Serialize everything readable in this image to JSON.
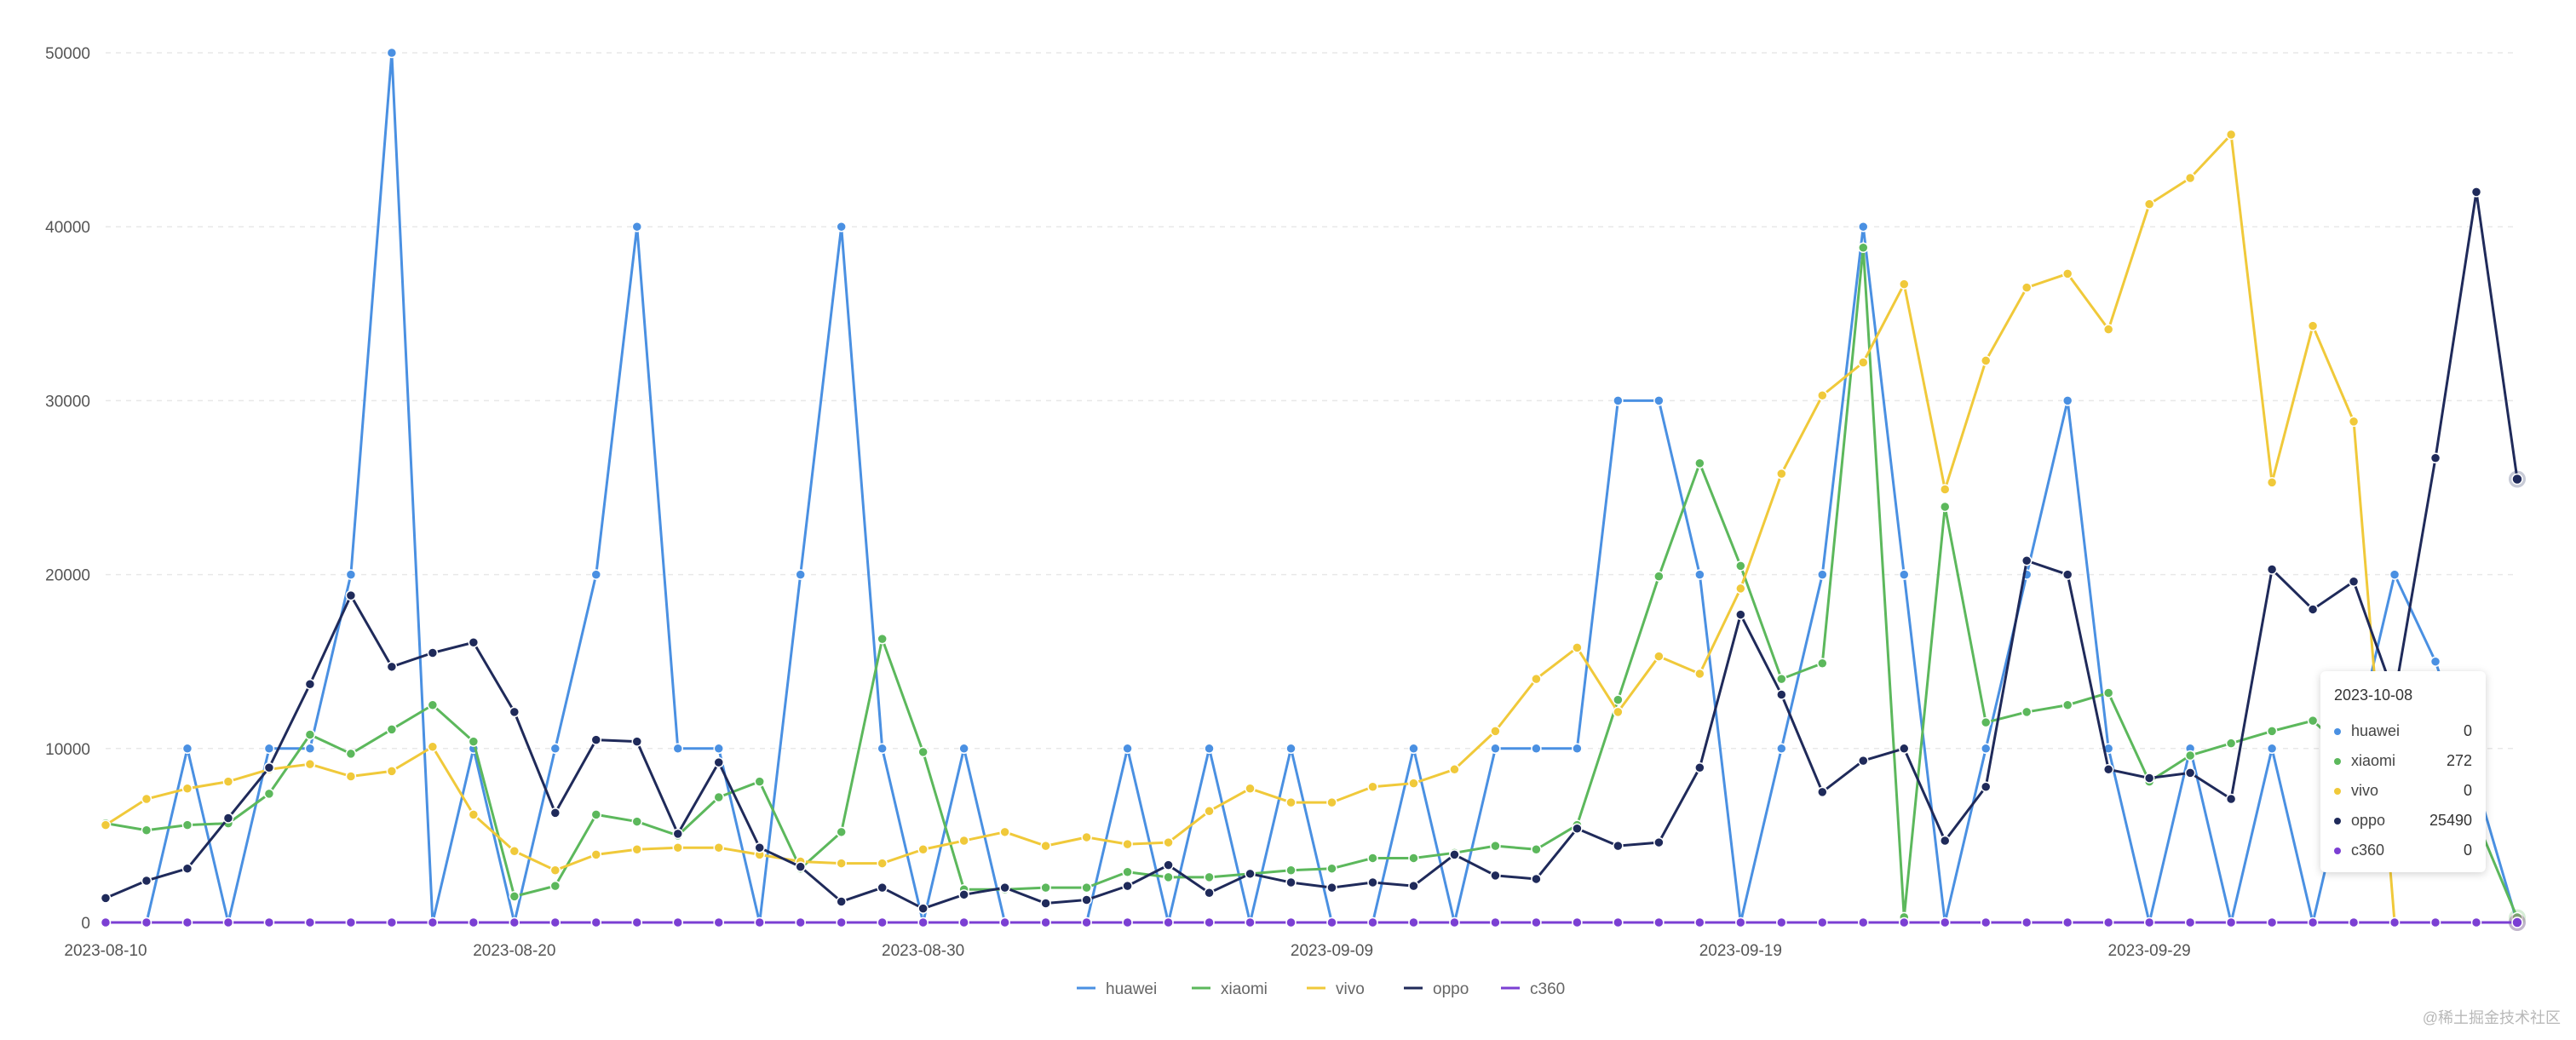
{
  "chart_data": {
    "type": "line",
    "x": [
      "2023-08-10",
      "2023-08-11",
      "2023-08-12",
      "2023-08-13",
      "2023-08-14",
      "2023-08-15",
      "2023-08-16",
      "2023-08-17",
      "2023-08-18",
      "2023-08-19",
      "2023-08-20",
      "2023-08-21",
      "2023-08-22",
      "2023-08-23",
      "2023-08-24",
      "2023-08-25",
      "2023-08-26",
      "2023-08-27",
      "2023-08-28",
      "2023-08-29",
      "2023-08-30",
      "2023-08-31",
      "2023-09-01",
      "2023-09-02",
      "2023-09-03",
      "2023-09-04",
      "2023-09-05",
      "2023-09-06",
      "2023-09-07",
      "2023-09-08",
      "2023-09-09",
      "2023-09-10",
      "2023-09-11",
      "2023-09-12",
      "2023-09-13",
      "2023-09-14",
      "2023-09-15",
      "2023-09-16",
      "2023-09-17",
      "2023-09-18",
      "2023-09-19",
      "2023-09-20",
      "2023-09-21",
      "2023-09-22",
      "2023-09-23",
      "2023-09-24",
      "2023-09-25",
      "2023-09-26",
      "2023-09-27",
      "2023-09-28",
      "2023-09-29",
      "2023-09-30",
      "2023-10-01",
      "2023-10-02",
      "2023-10-03",
      "2023-10-04",
      "2023-10-05",
      "2023-10-06",
      "2023-10-07",
      "2023-10-08"
    ],
    "x_tick_labels": [
      "2023-08-10",
      "2023-08-20",
      "2023-08-30",
      "2023-09-09",
      "2023-09-19",
      "2023-09-29"
    ],
    "ylim": [
      0,
      50000
    ],
    "y_ticks": [
      0,
      10000,
      20000,
      30000,
      40000,
      50000
    ],
    "grid": "horizontal-dashed",
    "legend": "bottom-center",
    "series": [
      {
        "name": "huawei",
        "color": "#4a90e2",
        "values": [
          0,
          0,
          10000,
          0,
          10000,
          10000,
          20000,
          50000,
          0,
          10000,
          0,
          10000,
          20000,
          40000,
          10000,
          10000,
          0,
          20000,
          40000,
          10000,
          0,
          10000,
          0,
          0,
          0,
          10000,
          0,
          10000,
          0,
          10000,
          0,
          0,
          10000,
          0,
          10000,
          10000,
          10000,
          30000,
          30000,
          20000,
          0,
          10000,
          20000,
          40000,
          20000,
          0,
          10000,
          20000,
          30000,
          10000,
          0,
          10000,
          0,
          10000,
          0,
          10000,
          20000,
          15000,
          8000,
          0
        ]
      },
      {
        "name": "xiaomi",
        "color": "#5cb85c",
        "values": [
          5700,
          5300,
          5600,
          5700,
          7400,
          10800,
          9700,
          11100,
          12500,
          10400,
          1500,
          2100,
          6200,
          5800,
          5000,
          7200,
          8100,
          3100,
          5200,
          16300,
          9800,
          1900,
          1900,
          2000,
          2000,
          2900,
          2600,
          2600,
          2800,
          3000,
          3100,
          3700,
          3700,
          4000,
          4400,
          4200,
          5600,
          12800,
          19900,
          26400,
          20500,
          14000,
          14900,
          38800,
          300,
          23900,
          11500,
          12100,
          12500,
          13200,
          8100,
          9600,
          10300,
          11000,
          11600,
          9500,
          8400,
          7500,
          5900,
          272
        ]
      },
      {
        "name": "vivo",
        "color": "#f0c93a",
        "values": [
          5600,
          7100,
          7700,
          8100,
          8800,
          9100,
          8400,
          8700,
          10100,
          6200,
          4100,
          3000,
          3900,
          4200,
          4300,
          4300,
          3900,
          3500,
          3400,
          3400,
          4200,
          4700,
          5200,
          4400,
          4900,
          4500,
          4600,
          6400,
          7700,
          6900,
          6900,
          7800,
          8000,
          8800,
          11000,
          14000,
          15800,
          12100,
          15300,
          14300,
          19200,
          25800,
          30300,
          32200,
          36700,
          24900,
          32300,
          36500,
          37300,
          34100,
          41300,
          42800,
          45300,
          25300,
          34300,
          28800,
          0,
          0,
          0,
          0
        ]
      },
      {
        "name": "oppo",
        "color": "#1f2a5a",
        "values": [
          1400,
          2400,
          3100,
          6000,
          8900,
          13700,
          18800,
          14700,
          15500,
          16100,
          12100,
          6300,
          10500,
          10400,
          5100,
          9200,
          4300,
          3200,
          1200,
          2000,
          800,
          1600,
          2000,
          1100,
          1300,
          2100,
          3300,
          1700,
          2800,
          2300,
          2000,
          2300,
          2100,
          3900,
          2700,
          2500,
          5400,
          4400,
          4600,
          8900,
          17700,
          13100,
          7500,
          9300,
          10000,
          4700,
          7800,
          20800,
          20000,
          8800,
          8300,
          8600,
          7100,
          20300,
          18000,
          19600,
          13000,
          26700,
          42000,
          25490
        ]
      },
      {
        "name": "c360",
        "color": "#7b3fd3",
        "values": [
          0,
          0,
          0,
          0,
          0,
          0,
          0,
          0,
          0,
          0,
          0,
          0,
          0,
          0,
          0,
          0,
          0,
          0,
          0,
          0,
          0,
          0,
          0,
          0,
          0,
          0,
          0,
          0,
          0,
          0,
          0,
          0,
          0,
          0,
          0,
          0,
          0,
          0,
          0,
          0,
          0,
          0,
          0,
          0,
          0,
          0,
          0,
          0,
          0,
          0,
          0,
          0,
          0,
          0,
          0,
          0,
          0,
          0,
          0,
          0
        ]
      }
    ]
  },
  "tooltip": {
    "title": "2023-10-08",
    "rows": [
      {
        "name": "huawei",
        "value": "0",
        "color": "#4a90e2"
      },
      {
        "name": "xiaomi",
        "value": "272",
        "color": "#5cb85c"
      },
      {
        "name": "vivo",
        "value": "0",
        "color": "#f0c93a"
      },
      {
        "name": "oppo",
        "value": "25490",
        "color": "#1f2a5a"
      },
      {
        "name": "c360",
        "value": "0",
        "color": "#7b3fd3"
      }
    ]
  },
  "watermark": "@稀土掘金技术社区"
}
